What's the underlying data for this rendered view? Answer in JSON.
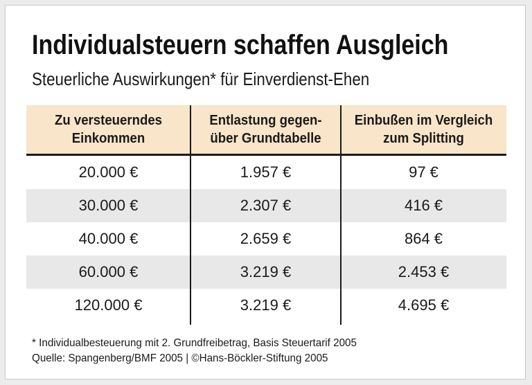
{
  "header": {
    "title": "Individualsteuern schaffen Ausgleich",
    "subtitle": "Steuerliche Auswirkungen* für Einverdienst-Ehen"
  },
  "table": {
    "headers": [
      "Zu versteuerndes\nEinkommen",
      "Entlastung gegen-\nüber Grundtabelle",
      "Einbußen im Vergleich\nzum Splitting"
    ],
    "rows": [
      [
        "20.000 €",
        "1.957 €",
        "97 €"
      ],
      [
        "30.000 €",
        "2.307 €",
        "416 €"
      ],
      [
        "40.000 €",
        "2.659 €",
        "864 €"
      ],
      [
        "60.000 €",
        "3.219 €",
        "2.453 €"
      ],
      [
        "120.000 €",
        "3.219 €",
        "4.695 €"
      ]
    ]
  },
  "footer": {
    "footnote": "* Individualbesteuerung mit 2. Grundfreibetrag, Basis Steuertarif 2005",
    "source": "Quelle: Spangenberg/BMF 2005 | ©Hans-Böckler-Stiftung 2005"
  },
  "colors": {
    "header_bg": "#f9e5c9",
    "row_alt_bg": "#e8e8e8",
    "line": "#1a1a1a",
    "card_border": "#c9c9c9",
    "page_bg": "#ececec"
  },
  "chart_data": {
    "type": "table",
    "title": "Individualsteuern schaffen Ausgleich",
    "subtitle": "Steuerliche Auswirkungen* für Einverdienst-Ehen",
    "columns": [
      "Zu versteuerndes Einkommen",
      "Entlastung gegenüber Grundtabelle",
      "Einbußen im Vergleich zum Splitting"
    ],
    "rows": [
      [
        "20.000 €",
        "1.957 €",
        "97 €"
      ],
      [
        "30.000 €",
        "2.307 €",
        "416 €"
      ],
      [
        "40.000 €",
        "2.659 €",
        "864 €"
      ],
      [
        "60.000 €",
        "3.219 €",
        "2.453 €"
      ],
      [
        "120.000 €",
        "3.219 €",
        "4.695 €"
      ]
    ],
    "numeric": {
      "zu_versteuerndes_einkommen_eur": [
        20000,
        30000,
        40000,
        60000,
        120000
      ],
      "entlastung_gegenueber_grundtabelle_eur": [
        1957,
        2307,
        2659,
        3219,
        3219
      ],
      "einbussen_im_vergleich_zum_splitting_eur": [
        97,
        416,
        864,
        2453,
        4695
      ]
    },
    "footnote": "* Individualbesteuerung mit 2. Grundfreibetrag, Basis Steuertarif 2005",
    "source": "Quelle: Spangenberg/BMF 2005 | ©Hans-Böckler-Stiftung 2005"
  }
}
